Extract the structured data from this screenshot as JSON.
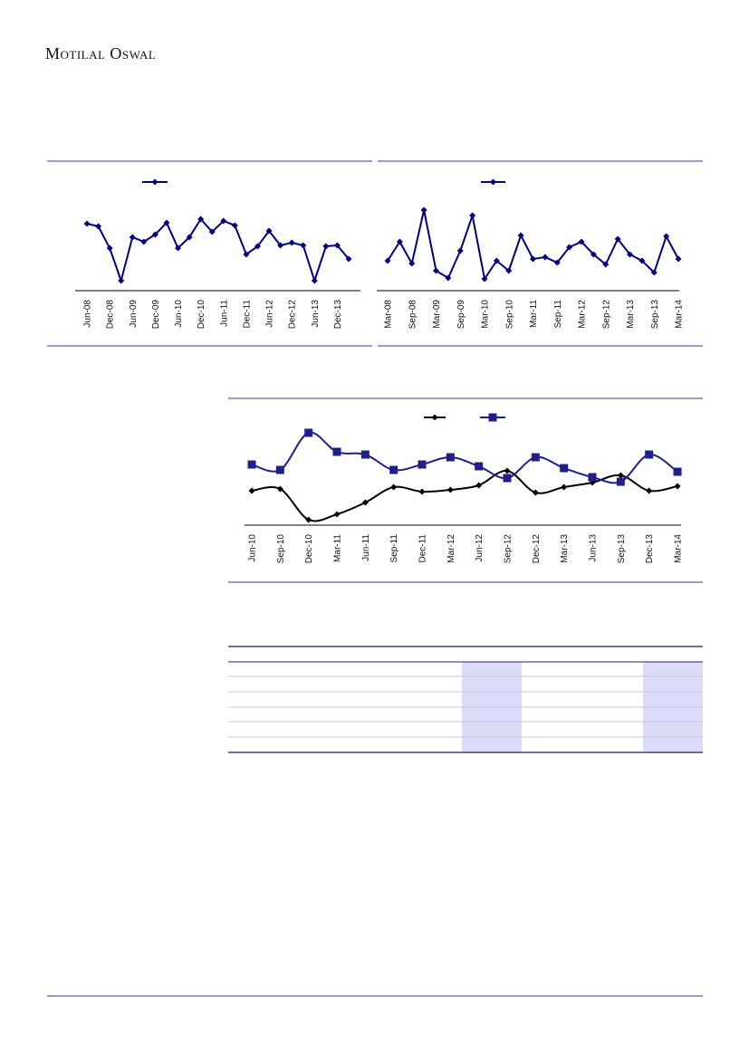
{
  "header": {
    "title": "Motilal Oswal"
  },
  "chart_data": [
    {
      "type": "line",
      "color": "#000080",
      "categories": [
        "Jun-08",
        null,
        "Dec-08",
        null,
        "Jun-09",
        null,
        "Dec-09",
        null,
        "Jun-10",
        null,
        "Dec-10",
        null,
        "Jun-11",
        null,
        "Dec-11",
        null,
        "Jun-12",
        null,
        "Dec-12",
        null,
        "Jun-13",
        null,
        "Dec-13",
        null
      ],
      "ylim": [
        0,
        100
      ],
      "series": [
        {
          "color": "#000080",
          "marker": "diamond",
          "values": [
            73,
            70,
            46,
            10,
            58,
            53,
            61,
            74,
            46,
            58,
            78,
            64,
            76,
            71,
            39,
            48,
            65,
            49,
            52,
            49,
            10,
            48,
            49,
            34
          ]
        }
      ]
    },
    {
      "type": "line",
      "color": "#000080",
      "categories": [
        "Mar-08",
        null,
        "Sep-08",
        null,
        "Mar-09",
        null,
        "Sep-09",
        null,
        "Mar-10",
        null,
        "Sep-10",
        null,
        "Mar-11",
        null,
        "Sep-11",
        null,
        "Mar-12",
        null,
        "Sep-12",
        null,
        "Mar-13",
        null,
        "Sep-13",
        null,
        "Mar-14"
      ],
      "ylim": [
        0,
        100
      ],
      "series": [
        {
          "color": "#000080",
          "marker": "diamond",
          "values": [
            32,
            53,
            29,
            88,
            21,
            13,
            43,
            82,
            12,
            32,
            21,
            60,
            34,
            36,
            30,
            47,
            53,
            39,
            28,
            56,
            39,
            32,
            19,
            59,
            34
          ]
        }
      ]
    },
    {
      "type": "line",
      "smooth": true,
      "categories": [
        "Jun-10",
        "Sep-10",
        "Dec-10",
        "Mar-11",
        "Jun-11",
        "Sep-11",
        "Dec-11",
        "Mar-12",
        "Jun-12",
        "Sep-12",
        "Dec-12",
        "Mar-13",
        "Jun-13",
        "Sep-13",
        "Dec-13",
        "Mar-14"
      ],
      "ylim": [
        0,
        120
      ],
      "series": [
        {
          "color": "#000000",
          "marker": "diamond",
          "values": [
            38,
            40,
            6,
            12,
            25,
            42,
            37,
            39,
            44,
            60,
            36,
            42,
            47,
            55,
            38,
            43
          ]
        },
        {
          "color": "#1f1f8a",
          "marker": "square",
          "values": [
            67,
            61,
            102,
            81,
            78,
            61,
            67,
            75,
            65,
            52,
            75,
            63,
            53,
            48,
            78,
            59
          ]
        }
      ]
    }
  ]
}
